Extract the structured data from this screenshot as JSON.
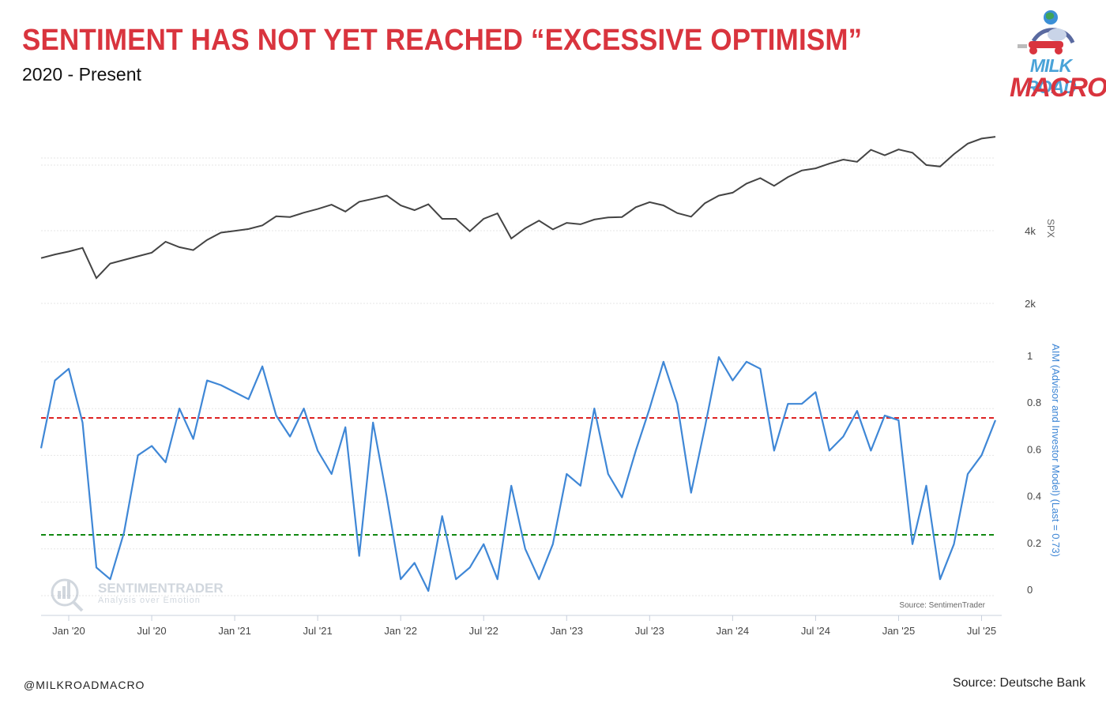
{
  "header": {
    "title": "SENTIMENT HAS NOT YET REACHED “EXCESSIVE OPTIMISM”",
    "subtitle": "2020 - Present",
    "title_color": "#d9343e"
  },
  "logo": {
    "line1": "MILK ROAD",
    "line2": "MACRO",
    "icon": "globe-rider-logo"
  },
  "footer": {
    "handle": "@MILKROADMACRO",
    "source": "Source: Deutsche Bank"
  },
  "watermark": {
    "name": "SENTIMENTRADER",
    "tagline": "Analysis over Emotion",
    "source": "Source: SentimenTrader"
  },
  "chart_data": [
    {
      "type": "line",
      "series": [
        {
          "name": "SPX",
          "color": "#444444"
        }
      ],
      "ylabel": "SPX",
      "y_ticks": [
        "4k",
        "2k"
      ],
      "x_tick_labels": [
        "Jan '20",
        "Jul '20",
        "Jan '21",
        "Jul '21",
        "Jan '22",
        "Jul '22",
        "Jan '23",
        "Jul '23",
        "Jan '24",
        "Jul '24",
        "Jan '25",
        "Jul '25"
      ],
      "x": [
        "2019-11",
        "2019-12",
        "2020-01",
        "2020-02",
        "2020-03",
        "2020-04",
        "2020-05",
        "2020-06",
        "2020-07",
        "2020-08",
        "2020-09",
        "2020-10",
        "2020-11",
        "2020-12",
        "2021-01",
        "2021-02",
        "2021-03",
        "2021-04",
        "2021-05",
        "2021-06",
        "2021-07",
        "2021-08",
        "2021-09",
        "2021-10",
        "2021-11",
        "2021-12",
        "2022-01",
        "2022-02",
        "2022-03",
        "2022-04",
        "2022-05",
        "2022-06",
        "2022-07",
        "2022-08",
        "2022-09",
        "2022-10",
        "2022-11",
        "2022-12",
        "2023-01",
        "2023-02",
        "2023-03",
        "2023-04",
        "2023-05",
        "2023-06",
        "2023-07",
        "2023-08",
        "2023-09",
        "2023-10",
        "2023-11",
        "2023-12",
        "2024-01",
        "2024-02",
        "2024-03",
        "2024-04",
        "2024-05",
        "2024-06",
        "2024-07",
        "2024-08",
        "2024-09",
        "2024-10",
        "2024-11",
        "2024-12",
        "2025-01",
        "2025-02",
        "2025-03",
        "2025-04",
        "2025-05",
        "2025-06",
        "2025-07",
        "2025-08"
      ],
      "values": [
        3050,
        3150,
        3230,
        3330,
        2500,
        2900,
        3000,
        3100,
        3200,
        3500,
        3350,
        3270,
        3550,
        3750,
        3800,
        3850,
        3950,
        4200,
        4180,
        4300,
        4400,
        4520,
        4330,
        4600,
        4680,
        4770,
        4500,
        4370,
        4530,
        4130,
        4130,
        3790,
        4130,
        4280,
        3590,
        3870,
        4080,
        3840,
        4020,
        3980,
        4110,
        4170,
        4180,
        4450,
        4590,
        4500,
        4290,
        4190,
        4560,
        4770,
        4850,
        5100,
        5250,
        5040,
        5280,
        5460,
        5520,
        5650,
        5760,
        5700,
        6030,
        5880,
        6040,
        5950,
        5610,
        5570,
        5910,
        6200,
        6340,
        6390
      ]
    },
    {
      "type": "line",
      "series": [
        {
          "name": "AIM (Advisor and Investor Model) (Last = 0.73)",
          "color": "#3f87d6"
        }
      ],
      "ylabel": "AIM (Advisor and Investor Model) (Last = 0.73)",
      "ylim": [
        0,
        1
      ],
      "y_ticks": [
        0,
        0.2,
        0.4,
        0.6,
        0.8,
        1
      ],
      "reference_lines": [
        {
          "value": 0.74,
          "color": "#dd2222",
          "style": "dashed"
        },
        {
          "value": 0.24,
          "color": "#118811",
          "style": "dashed"
        }
      ],
      "x": [
        "2019-11",
        "2019-12",
        "2020-01",
        "2020-02",
        "2020-03",
        "2020-04",
        "2020-05",
        "2020-06",
        "2020-07",
        "2020-08",
        "2020-09",
        "2020-10",
        "2020-11",
        "2020-12",
        "2021-01",
        "2021-02",
        "2021-03",
        "2021-04",
        "2021-05",
        "2021-06",
        "2021-07",
        "2021-08",
        "2021-09",
        "2021-10",
        "2021-11",
        "2021-12",
        "2022-01",
        "2022-02",
        "2022-03",
        "2022-04",
        "2022-05",
        "2022-06",
        "2022-07",
        "2022-08",
        "2022-09",
        "2022-10",
        "2022-11",
        "2022-12",
        "2023-01",
        "2023-02",
        "2023-03",
        "2023-04",
        "2023-05",
        "2023-06",
        "2023-07",
        "2023-08",
        "2023-09",
        "2023-10",
        "2023-11",
        "2023-12",
        "2024-01",
        "2024-02",
        "2024-03",
        "2024-04",
        "2024-05",
        "2024-06",
        "2024-07",
        "2024-08",
        "2024-09",
        "2024-10",
        "2024-11",
        "2024-12",
        "2025-01",
        "2025-02",
        "2025-03",
        "2025-04",
        "2025-05",
        "2025-06",
        "2025-07",
        "2025-08"
      ],
      "values": [
        0.61,
        0.9,
        0.95,
        0.72,
        0.1,
        0.05,
        0.25,
        0.58,
        0.62,
        0.55,
        0.78,
        0.65,
        0.9,
        0.88,
        0.85,
        0.82,
        0.96,
        0.75,
        0.66,
        0.78,
        0.6,
        0.5,
        0.7,
        0.15,
        0.72,
        0.4,
        0.05,
        0.12,
        0.0,
        0.32,
        0.05,
        0.1,
        0.2,
        0.05,
        0.45,
        0.18,
        0.05,
        0.2,
        0.5,
        0.45,
        0.78,
        0.5,
        0.4,
        0.6,
        0.78,
        0.98,
        0.8,
        0.42,
        0.7,
        1.0,
        0.9,
        0.98,
        0.95,
        0.6,
        0.8,
        0.8,
        0.85,
        0.6,
        0.66,
        0.77,
        0.6,
        0.75,
        0.73,
        0.2,
        0.45,
        0.05,
        0.2,
        0.5,
        0.58,
        0.73
      ]
    }
  ]
}
